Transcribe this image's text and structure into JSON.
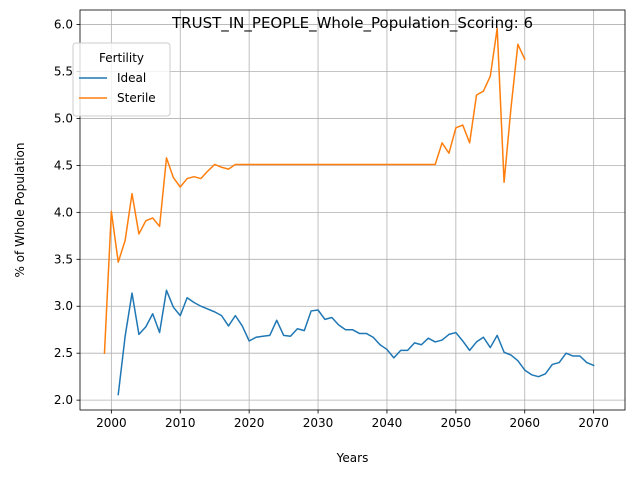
{
  "chart_data": {
    "type": "line",
    "title": "TRUST_IN_PEOPLE_Whole_Population_Scoring: 6",
    "xlabel": "Years",
    "ylabel": "% of Whole Population",
    "xlim": [
      1995.45,
      2074.55
    ],
    "ylim": [
      1.895,
      6.155
    ],
    "x_ticks": [
      2000,
      2010,
      2020,
      2030,
      2040,
      2050,
      2060,
      2070
    ],
    "y_ticks": [
      2.0,
      2.5,
      3.0,
      3.5,
      4.0,
      4.5,
      5.0,
      5.5,
      6.0
    ],
    "x_tick_labels": [
      "2000",
      "2010",
      "2020",
      "2030",
      "2040",
      "2050",
      "2060",
      "2070"
    ],
    "y_tick_labels": [
      "2.0",
      "2.5",
      "3.0",
      "3.5",
      "4.0",
      "4.5",
      "5.0",
      "5.5",
      "6.0"
    ],
    "grid": true,
    "legend": {
      "title": "Fertility",
      "placement": "upper-left"
    },
    "series": [
      {
        "name": "Ideal",
        "color": "#1f77b4",
        "x": [
          2001,
          2002,
          2003,
          2004,
          2005,
          2006,
          2007,
          2008,
          2009,
          2010,
          2011,
          2012,
          2013,
          2014,
          2015,
          2016,
          2017,
          2018,
          2019,
          2020,
          2021,
          2022,
          2023,
          2024,
          2025,
          2026,
          2027,
          2028,
          2029,
          2030,
          2031,
          2032,
          2033,
          2034,
          2035,
          2036,
          2037,
          2038,
          2039,
          2040,
          2041,
          2042,
          2043,
          2044,
          2045,
          2046,
          2047,
          2048,
          2049,
          2050,
          2051,
          2052,
          2053,
          2054,
          2055,
          2056,
          2057,
          2058,
          2059,
          2060,
          2061,
          2062,
          2063,
          2064,
          2065,
          2066,
          2067,
          2068,
          2069,
          2070
        ],
        "y": [
          2.06,
          2.68,
          3.14,
          2.7,
          2.78,
          2.92,
          2.72,
          3.17,
          2.99,
          2.9,
          3.09,
          3.04,
          3.0,
          2.97,
          2.94,
          2.9,
          2.79,
          2.9,
          2.79,
          2.63,
          2.67,
          2.68,
          2.69,
          2.85,
          2.69,
          2.68,
          2.76,
          2.74,
          2.95,
          2.96,
          2.86,
          2.88,
          2.8,
          2.75,
          2.75,
          2.71,
          2.71,
          2.67,
          2.59,
          2.54,
          2.45,
          2.53,
          2.53,
          2.61,
          2.59,
          2.66,
          2.62,
          2.64,
          2.7,
          2.72,
          2.63,
          2.53,
          2.62,
          2.67,
          2.56,
          2.69,
          2.51,
          2.48,
          2.42,
          2.32,
          2.27,
          2.25,
          2.28,
          2.38,
          2.4,
          2.5,
          2.47,
          2.47,
          2.4,
          2.37
        ]
      },
      {
        "name": "Sterile",
        "color": "#ff7f0e",
        "x": [
          1999,
          2000,
          2001,
          2002,
          2003,
          2004,
          2005,
          2006,
          2007,
          2008,
          2009,
          2010,
          2011,
          2012,
          2013,
          2014,
          2015,
          2016,
          2017,
          2018,
          2019,
          2020,
          2021,
          2022,
          2023,
          2024,
          2025,
          2026,
          2027,
          2028,
          2029,
          2030,
          2031,
          2032,
          2033,
          2034,
          2035,
          2036,
          2037,
          2038,
          2039,
          2040,
          2041,
          2042,
          2043,
          2044,
          2045,
          2046,
          2047,
          2048,
          2049,
          2050,
          2051,
          2052,
          2053,
          2054,
          2055,
          2056,
          2057,
          2058,
          2059,
          2060
        ],
        "y": [
          2.5,
          4.01,
          3.47,
          3.7,
          4.2,
          3.77,
          3.91,
          3.94,
          3.85,
          4.58,
          4.37,
          4.27,
          4.36,
          4.38,
          4.36,
          4.44,
          4.51,
          4.48,
          4.46,
          4.51,
          4.51,
          4.51,
          4.51,
          4.51,
          4.51,
          4.51,
          4.51,
          4.51,
          4.51,
          4.51,
          4.51,
          4.51,
          4.51,
          4.51,
          4.51,
          4.51,
          4.51,
          4.51,
          4.51,
          4.51,
          4.51,
          4.51,
          4.51,
          4.51,
          4.51,
          4.51,
          4.51,
          4.51,
          4.51,
          4.74,
          4.63,
          4.9,
          4.93,
          4.74,
          5.25,
          5.29,
          5.45,
          5.96,
          4.32,
          5.11,
          5.79,
          5.63
        ]
      }
    ]
  }
}
